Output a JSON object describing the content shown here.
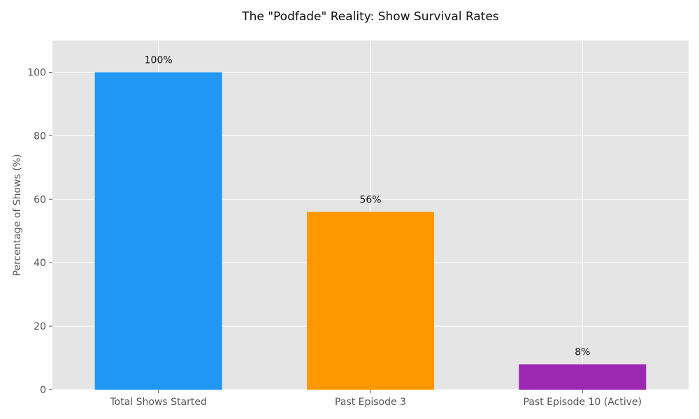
{
  "chart_data": {
    "type": "bar",
    "title": "The \"Podfade\" Reality: Show Survival Rates",
    "xlabel": "",
    "ylabel": "Percentage of Shows (%)",
    "categories": [
      "Total Shows Started",
      "Past Episode 3",
      "Past Episode 10 (Active)"
    ],
    "values": [
      100,
      56,
      8
    ],
    "data_labels": [
      "100%",
      "56%",
      "8%"
    ],
    "colors": [
      "#2196f3",
      "#ff9800",
      "#9c27b0"
    ],
    "ylim": [
      0,
      110
    ],
    "yticks": [
      0,
      20,
      40,
      60,
      80,
      100
    ],
    "grid": true,
    "background": "#e5e5e5",
    "grid_color": "#ffffff"
  }
}
